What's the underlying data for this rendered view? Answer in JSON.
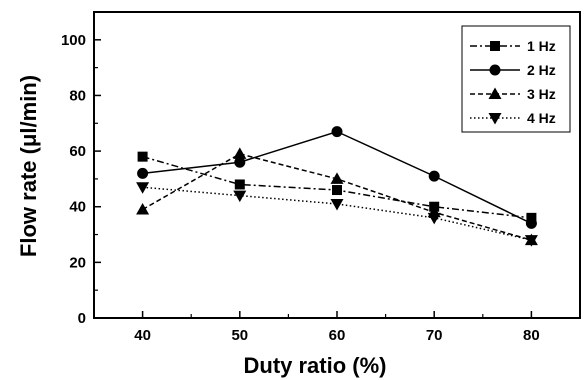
{
  "chart_data": {
    "type": "line",
    "title": "",
    "xlabel": "Duty ratio (%)",
    "ylabel": "Flow rate (μl/min)",
    "x": [
      40,
      50,
      60,
      70,
      80
    ],
    "xlim": [
      35,
      85
    ],
    "ylim": [
      0,
      110
    ],
    "xticks": [
      "40",
      "50",
      "60",
      "70",
      "80"
    ],
    "yticks": [
      "0",
      "20",
      "40",
      "60",
      "80",
      "100"
    ],
    "grid": false,
    "legend_position": "top-right",
    "series": [
      {
        "name": "1 Hz",
        "marker": "square",
        "line_style": "dash-dot",
        "values": [
          58,
          48,
          46,
          40,
          36
        ]
      },
      {
        "name": "2 Hz",
        "marker": "circle",
        "line_style": "solid",
        "values": [
          52,
          56,
          67,
          51,
          34
        ]
      },
      {
        "name": "3 Hz",
        "marker": "triangle-up",
        "line_style": "dashed",
        "values": [
          39,
          59,
          50,
          38,
          28
        ]
      },
      {
        "name": "4 Hz",
        "marker": "triangle-down",
        "line_style": "dotted",
        "values": [
          47,
          44,
          41,
          36,
          28
        ]
      }
    ],
    "colors": {
      "line": "#000000",
      "background": "#ffffff"
    }
  }
}
